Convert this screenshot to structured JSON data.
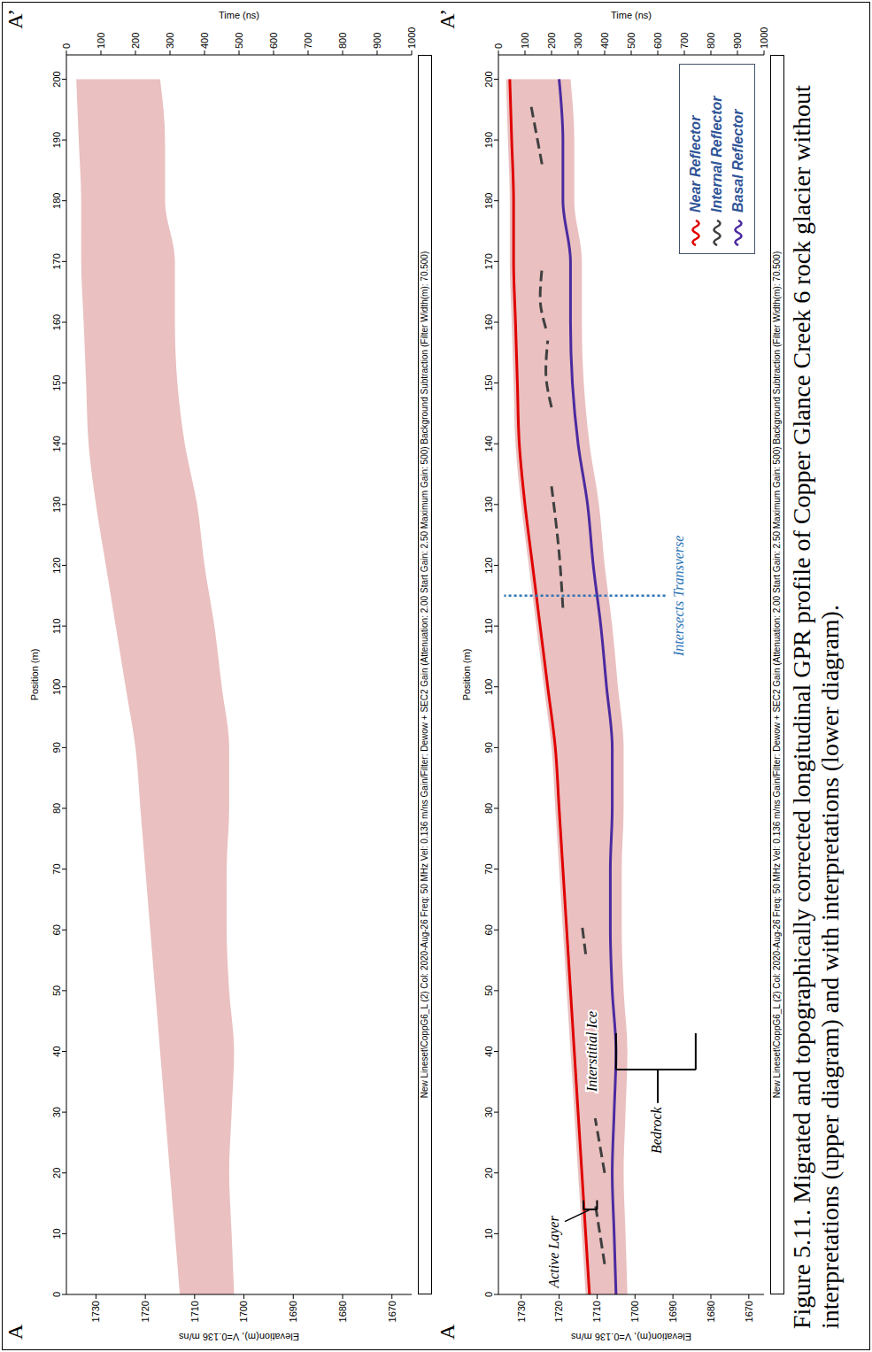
{
  "caption": "Figure 5.11. Migrated and topographically corrected longitudinal GPR profile of Copper Glance Creek 6 rock glacier without interpretations (upper diagram) and with interpretations (lower diagram).",
  "chart_data": [
    {
      "type": "line",
      "x_label": "Position (m)",
      "y_label": "Elevation(m), V=0.136 m/ns",
      "y2_label": "Time (ns)",
      "endpoints": [
        "A",
        "A’"
      ],
      "footer": "New Lineset\\CoppG6_L (2)  Col: 2020-Aug-26  Freq: 50 MHz  Vel: 0.136 m/ns  Gain/Filter: Dewow + SEC2 Gain (Attenuation: 2.00  Start Gain: 2.50  Maximum Gain: 500)  Background Subtraction (Filter Width(m): 70.500)",
      "x": [
        0,
        10,
        20,
        30,
        40,
        50,
        60,
        70,
        80,
        90,
        100,
        110,
        120,
        130,
        140,
        150,
        160,
        170,
        180,
        190,
        200
      ],
      "xlim": [
        0,
        204
      ],
      "xticks": [
        0,
        10,
        20,
        30,
        40,
        50,
        60,
        70,
        80,
        90,
        100,
        110,
        120,
        130,
        140,
        150,
        160,
        170,
        180,
        190,
        200
      ],
      "ylim": [
        1666,
        1736
      ],
      "yticks": [
        1670,
        1680,
        1690,
        1700,
        1710,
        1720,
        1730
      ],
      "y2lim": [
        0,
        1000
      ],
      "y2ticks": [
        0,
        100,
        200,
        300,
        400,
        500,
        600,
        700,
        800,
        900,
        1000
      ],
      "series": [
        {
          "type": "area",
          "color": "#d98c8c",
          "upper": [
            1713,
            1714,
            1715,
            1716,
            1717,
            1718,
            1719,
            1720,
            1721,
            1722,
            1724,
            1726,
            1728,
            1730,
            1731.5,
            1732,
            1732.5,
            1733,
            1733,
            1733.5,
            1734
          ],
          "lower": [
            1702,
            1702.5,
            1703,
            1702.5,
            1702,
            1703,
            1703.5,
            1703.5,
            1703,
            1703,
            1704.5,
            1706,
            1708,
            1709.5,
            1712,
            1713.5,
            1714,
            1714,
            1716,
            1716,
            1717
          ]
        }
      ]
    },
    {
      "type": "line",
      "x_label": "Position (m)",
      "y_label": "Elevation(m), V=0.136 m/ns",
      "y2_label": "Time (ns)",
      "endpoints": [
        "A",
        "A’"
      ],
      "footer": "New Lineset\\CoppG6_L (2)  Col: 2020-Aug-26  Freq: 50 MHz  Vel: 0.136 m/ns  Gain/Filter: Dewow + SEC2 Gain (Attenuation: 2.00  Start Gain: 2.50  Maximum Gain: 500)  Background Subtraction (Filter Width(m): 70.500)",
      "x": [
        0,
        10,
        20,
        30,
        40,
        50,
        60,
        70,
        80,
        90,
        100,
        110,
        120,
        130,
        140,
        150,
        160,
        170,
        180,
        190,
        200
      ],
      "xlim": [
        0,
        204
      ],
      "xticks": [
        0,
        10,
        20,
        30,
        40,
        50,
        60,
        70,
        80,
        90,
        100,
        110,
        120,
        130,
        140,
        150,
        160,
        170,
        180,
        190,
        200
      ],
      "ylim": [
        1666,
        1736
      ],
      "yticks": [
        1670,
        1680,
        1690,
        1700,
        1710,
        1720,
        1730
      ],
      "y2lim": [
        0,
        1000
      ],
      "y2ticks": [
        0,
        100,
        200,
        300,
        400,
        500,
        600,
        700,
        800,
        900,
        1000
      ],
      "legend": "lower right",
      "series": [
        {
          "type": "area",
          "color": "#d98c8c",
          "upper": [
            1713,
            1714,
            1715,
            1716,
            1717,
            1718,
            1719,
            1720,
            1721,
            1722,
            1724,
            1726,
            1728,
            1730,
            1731.5,
            1732,
            1732.5,
            1733,
            1733,
            1733.5,
            1734
          ],
          "lower": [
            1702,
            1702.5,
            1703,
            1702.5,
            1702,
            1703,
            1703.5,
            1703.5,
            1703,
            1703,
            1704.5,
            1706,
            1708,
            1709.5,
            1712,
            1713.5,
            1714,
            1714,
            1716,
            1716,
            1717
          ]
        },
        {
          "name": "Near Reflector",
          "type": "line",
          "color": "#e00000",
          "line_style": "solid",
          "values": [
            1712,
            1713,
            1714,
            1715,
            1716,
            1717,
            1718,
            1719,
            1720,
            1721,
            1723,
            1725,
            1727,
            1729,
            1730.5,
            1731,
            1731.5,
            1732,
            1732,
            1732.5,
            1733
          ]
        },
        {
          "name": "Internal Reflector",
          "type": "line",
          "color": "#404040",
          "line_style": "dashed",
          "segments": [
            {
              "x": [
                5,
                15
              ],
              "values": [
                1708,
                1710.5
              ]
            },
            {
              "x": [
                20,
                29
              ],
              "values": [
                1708,
                1710.5
              ]
            },
            {
              "x": [
                56,
                61
              ],
              "values": [
                1713,
                1714
              ]
            },
            {
              "x": [
                113,
                122,
                133
              ],
              "values": [
                1719,
                1720,
                1722
              ]
            },
            {
              "x": [
                146,
                152,
                157
              ],
              "values": [
                1722,
                1723.5,
                1723
              ]
            },
            {
              "x": [
                159,
                164,
                169
              ],
              "values": [
                1723.5,
                1725,
                1724.5
              ]
            },
            {
              "x": [
                186,
                191,
                196
              ],
              "values": [
                1724.5,
                1726,
                1727.5
              ]
            }
          ]
        },
        {
          "name": "Basal Reflector",
          "type": "line",
          "color": "#4b2aa0",
          "line_style": "solid",
          "values": [
            1705,
            1705.5,
            1706,
            1705.5,
            1705,
            1706,
            1706.5,
            1706.5,
            1706,
            1706,
            1707.5,
            1709,
            1711,
            1712.5,
            1715,
            1716.5,
            1717,
            1717,
            1719,
            1719,
            1720
          ]
        }
      ],
      "annotations": [
        {
          "text": "Active Layer",
          "x": 7,
          "y": 1721
        },
        {
          "text": "Interstitial Ice",
          "x": 40,
          "y": 1711
        },
        {
          "text": "Bedrock",
          "x": 27,
          "y": 1694
        },
        {
          "text": "Intersects Transverse",
          "x": 115,
          "y": 1688,
          "color": "#2e75b6"
        }
      ]
    }
  ]
}
